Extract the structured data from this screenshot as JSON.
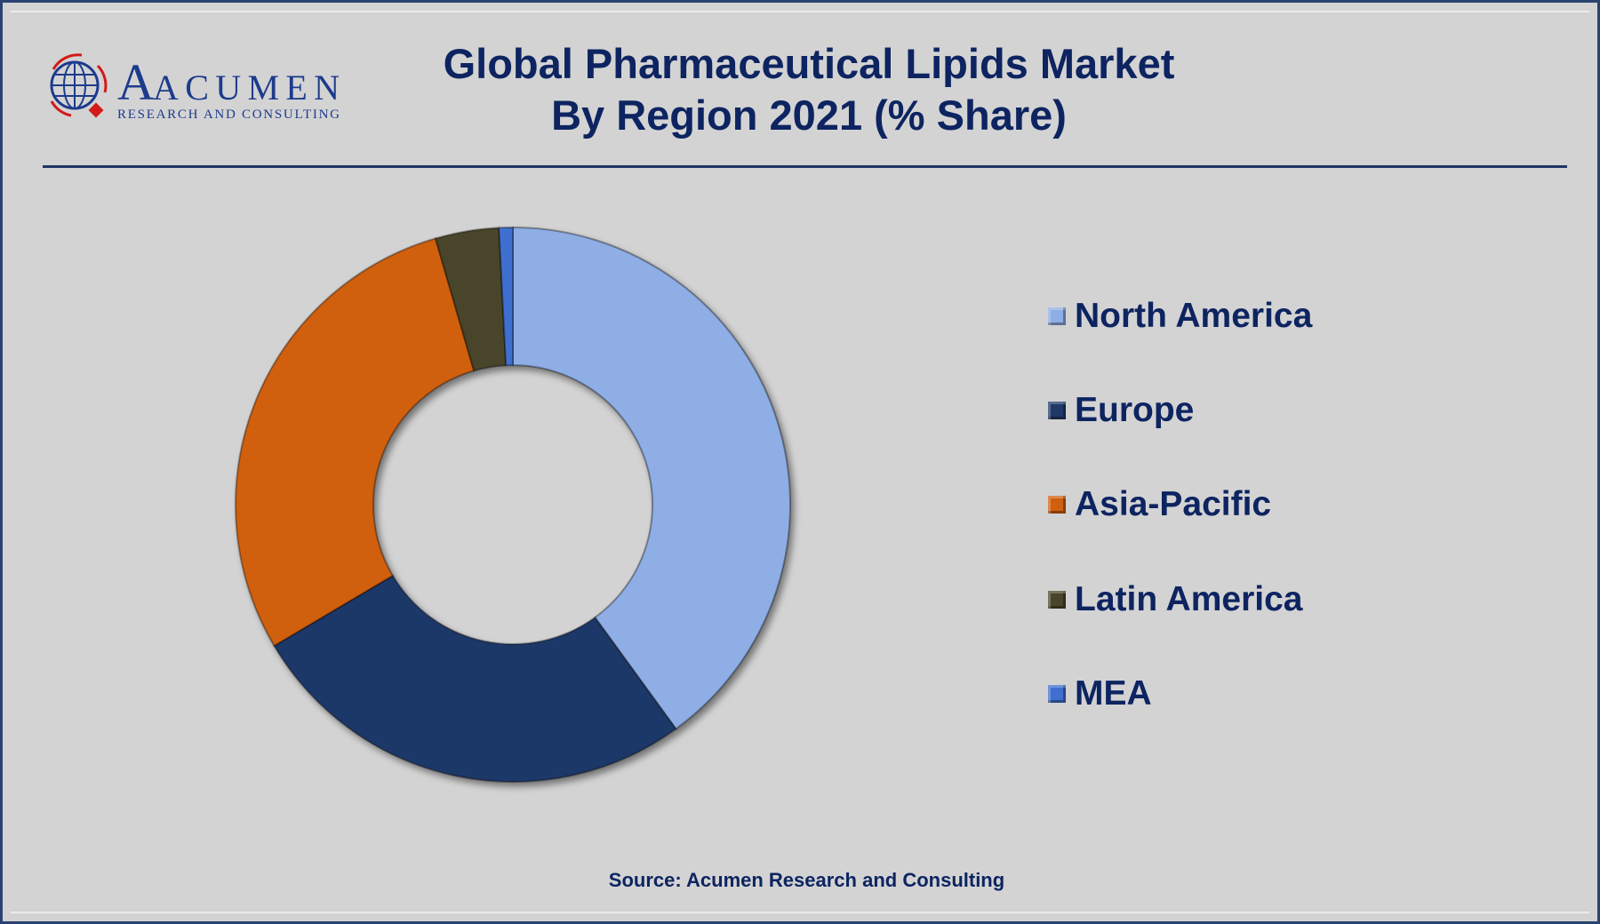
{
  "logo": {
    "name": "ACUMEN",
    "tagline": "RESEARCH AND CONSULTING"
  },
  "title": {
    "line1": "Global Pharmaceutical Lipids Market",
    "line2": "By Region 2021 (% Share)"
  },
  "source": "Source: Acumen Research and Consulting",
  "chart_data": {
    "type": "pie",
    "variant": "donut",
    "title": "Global Pharmaceutical Lipids Market By Region 2021 (% Share)",
    "legend_position": "right",
    "categories": [
      "North America",
      "Europe",
      "Asia-Pacific",
      "Latin America",
      "MEA"
    ],
    "values": [
      40.0,
      26.5,
      29.0,
      3.7,
      0.8
    ],
    "unit": "%",
    "colors": [
      "#8eaee5",
      "#1f3868",
      "#d0600f",
      "#4a452a",
      "#3f6fcf"
    ]
  }
}
